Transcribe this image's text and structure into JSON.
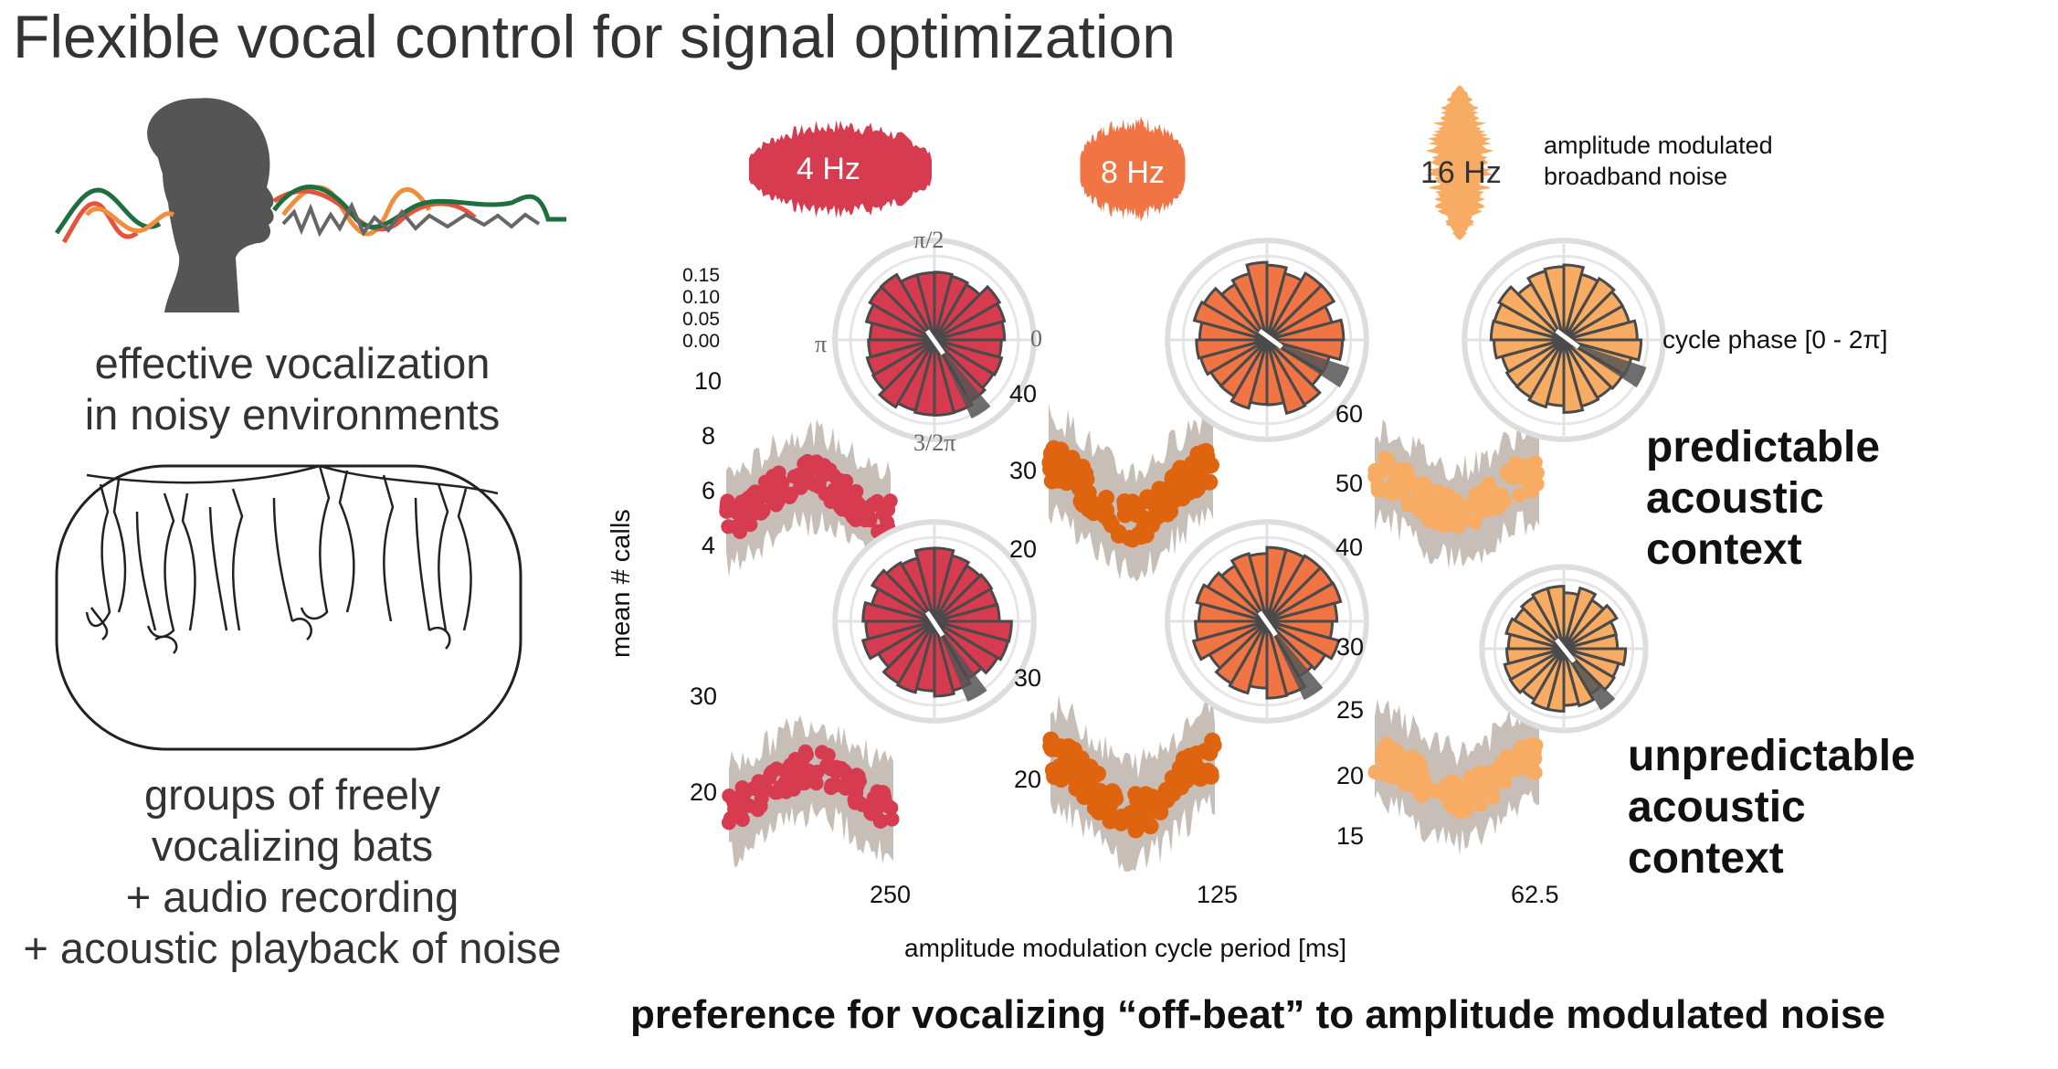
{
  "title": "Flexible vocal control for signal optimization",
  "left": {
    "caption1": [
      "effective vocalization",
      "in noisy environments"
    ],
    "caption2": [
      "groups of freely",
      "vocalizing bats",
      "+ audio recording",
      "+ acoustic playback of noise"
    ]
  },
  "noise": {
    "legend": [
      "amplitude modulated",
      "broadband noise"
    ],
    "freqs": [
      "4 Hz",
      "8 Hz",
      "16 Hz"
    ]
  },
  "polar": {
    "radial_ticks": [
      "0.15",
      "0.10",
      "0.05",
      "0.00"
    ],
    "angle_labels": [
      "π/2",
      "π",
      "0",
      "3/2π"
    ],
    "cycle_label": "cycle phase [0 - 2π]"
  },
  "contexts": {
    "predictable": [
      "predictable",
      "acoustic",
      "context"
    ],
    "unpredictable": [
      "unpredictable",
      "acoustic",
      "context"
    ]
  },
  "axes": {
    "ylabel": "mean # calls",
    "xlabel": "amplitude modulation cycle period [ms]",
    "x_ticks": [
      "250",
      "125",
      "62.5"
    ],
    "ticks": {
      "p1": [
        "10",
        "8",
        "6",
        "4"
      ],
      "p2": [
        "40",
        "30",
        "20"
      ],
      "p3": [
        "60",
        "50",
        "40"
      ],
      "u1": [
        "30",
        "20"
      ],
      "u2": [
        "30",
        "20"
      ],
      "u3": [
        "30",
        "25",
        "20",
        "15"
      ]
    }
  },
  "footer": "preference for vocalizing “off-beat” to amplitude modulated noise",
  "colors": {
    "c4": "#d63b4f",
    "c8p": "#f07444",
    "c8dots": "#df6410",
    "c16": "#f8ac63",
    "band": "#c7beb8",
    "dark": "#4a4a4a"
  }
}
